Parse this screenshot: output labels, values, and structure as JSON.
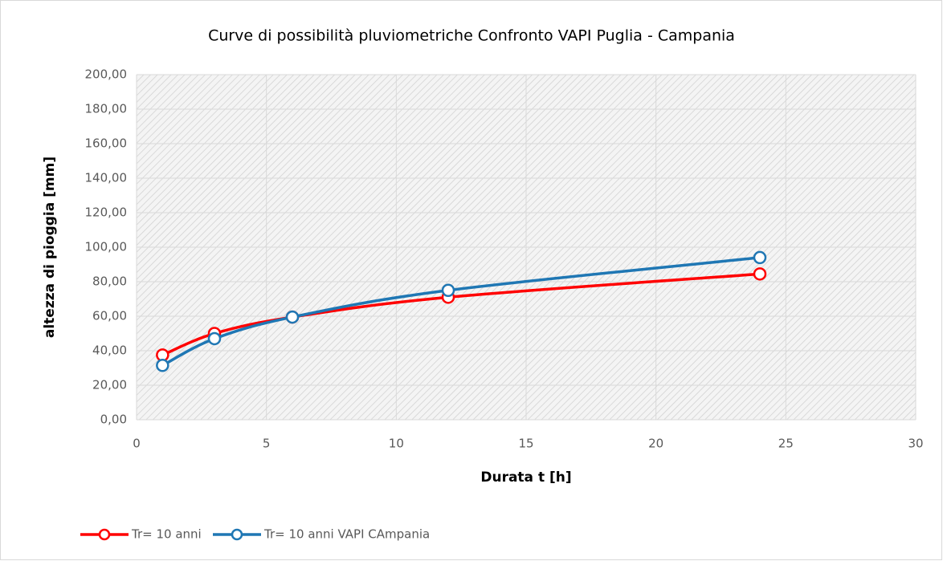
{
  "chart_data": {
    "type": "line",
    "title": "Curve di possibilità pluviometriche Confronto VAPI Puglia - Campania",
    "x_label": "Durata t [h]",
    "y_label": "altezza di pioggia [mm]",
    "x": [
      1,
      3,
      6,
      12,
      24
    ],
    "series": [
      {
        "name": "Tr= 10 anni",
        "color": "#ff0000",
        "values": [
          37.5,
          50,
          59.5,
          71,
          84.5
        ]
      },
      {
        "name": "Tr= 10 anni VAPI CAmpania",
        "color": "#1f77b4",
        "values": [
          31.5,
          47,
          59.5,
          75,
          94
        ]
      }
    ],
    "xlim": [
      0,
      30
    ],
    "xticks": [
      0,
      5,
      10,
      15,
      20,
      25,
      30
    ],
    "ylim": [
      0,
      200
    ],
    "yticks": [
      {
        "value": 0,
        "label": "0,00"
      },
      {
        "value": 20,
        "label": "20,00"
      },
      {
        "value": 40,
        "label": "40,00"
      },
      {
        "value": 60,
        "label": "60,00"
      },
      {
        "value": 80,
        "label": "80,00"
      },
      {
        "value": 100,
        "label": "100,00"
      },
      {
        "value": 120,
        "label": "120,00"
      },
      {
        "value": 140,
        "label": "140,00"
      },
      {
        "value": 160,
        "label": "160,00"
      },
      {
        "value": 180,
        "label": "180,00"
      },
      {
        "value": 200,
        "label": "200,00"
      }
    ],
    "grid": true,
    "legend": "bottom-left"
  }
}
